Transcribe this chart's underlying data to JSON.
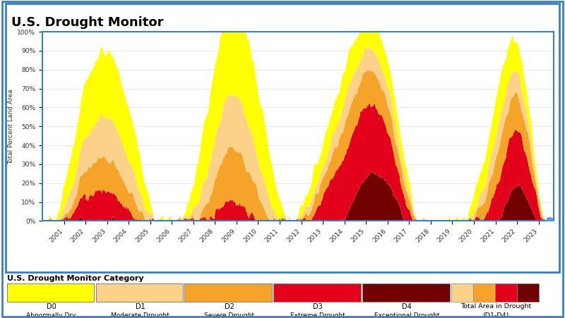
{
  "title": "U.S. Drought Monitor",
  "ylabel": "Total Percent Land Area",
  "legend_title": "U.S. Drought Monitor Category",
  "colors": {
    "D0": "#FFFF00",
    "D1": "#FCD18A",
    "D2": "#F5A429",
    "D3": "#E3001B",
    "D4": "#710000"
  },
  "yticks": [
    0,
    10,
    20,
    30,
    40,
    50,
    60,
    70,
    80,
    90,
    100
  ],
  "ytick_labels": [
    "0%",
    "10%",
    "20%",
    "30%",
    "40%",
    "50%",
    "60%",
    "70%",
    "80%",
    "90%",
    "100%"
  ],
  "background_color": "#FFFFFF",
  "plot_bg_color": "#FFFFFF",
  "border_color": "#3A7FC1",
  "fig_border_color": "#3A7FC1"
}
